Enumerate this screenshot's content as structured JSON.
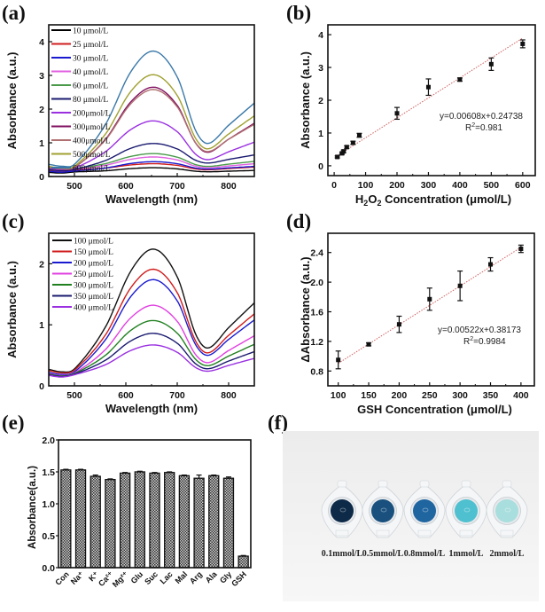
{
  "panels": {
    "a": "(a)",
    "b": "(b)",
    "c": "(c)",
    "d": "(d)",
    "e": "(e)",
    "f": "(f)"
  },
  "chart_data": [
    {
      "id": "a",
      "type": "line",
      "xlabel": "Wavelength (nm)",
      "ylabel": "Absorbance (a.u.)",
      "xlim": [
        450,
        850
      ],
      "ylim": [
        0,
        4.5
      ],
      "xticks": [
        500,
        600,
        700,
        800
      ],
      "yticks": [
        0,
        1,
        2,
        3,
        4
      ],
      "legend_position": "top-left",
      "curve_model": {
        "peak_wavelength": 655,
        "valley_wavelength": 760,
        "x_end": 850
      },
      "series": [
        {
          "name": "10 μmol/L",
          "color": "#000000",
          "start": 0.12,
          "peak": 0.26,
          "valley": 0.14,
          "end": 0.18
        },
        {
          "name": "25 μmol/L",
          "color": "#d01c1c",
          "start": 0.18,
          "peak": 0.38,
          "valley": 0.2,
          "end": 0.28
        },
        {
          "name": "30 μmol/L",
          "color": "#1a1ad0",
          "start": 0.15,
          "peak": 0.44,
          "valley": 0.22,
          "end": 0.3
        },
        {
          "name": "40 μmol/L",
          "color": "#e060e0",
          "start": 0.2,
          "peak": 0.58,
          "valley": 0.26,
          "end": 0.38
        },
        {
          "name": "60 μmol/L",
          "color": "#4a9a4a",
          "start": 0.22,
          "peak": 0.68,
          "valley": 0.3,
          "end": 0.45
        },
        {
          "name": "80 μmol/L",
          "color": "#1a1a70",
          "start": 0.2,
          "peak": 0.98,
          "valley": 0.4,
          "end": 0.64
        },
        {
          "name": "200μmol/L",
          "color": "#9a30e0",
          "start": 0.24,
          "peak": 1.65,
          "valley": 0.5,
          "end": 1.02
        },
        {
          "name": "300μmol/L",
          "color": "#801060",
          "start": 0.26,
          "peak": 2.65,
          "valley": 0.72,
          "end": 1.58
        },
        {
          "name": "400μmol/L",
          "color": "#b07070",
          "start": 0.27,
          "peak": 2.58,
          "valley": 0.74,
          "end": 1.55
        },
        {
          "name": "500μmol/L",
          "color": "#a0a030",
          "start": 0.3,
          "peak": 3.02,
          "valley": 0.82,
          "end": 1.8
        },
        {
          "name": "600μmol/L",
          "color": "#3a78a8",
          "start": 0.36,
          "peak": 3.72,
          "valley": 0.98,
          "end": 2.18
        }
      ]
    },
    {
      "id": "b",
      "type": "scatter",
      "xlabel": "H₂O₂ Concentration (μmol/L)",
      "xlabel_parts": {
        "h": "H",
        "sub1": "2",
        "o": "O",
        "sub2": "2",
        "rest": " Concentration (μmol/L)"
      },
      "ylabel": "Absorbance (a.u.)",
      "xlim": [
        -20,
        640
      ],
      "ylim": [
        -0.3,
        4.3
      ],
      "xticks": [
        0,
        100,
        200,
        300,
        400,
        500,
        600
      ],
      "yticks": [
        0,
        1,
        2,
        3,
        4
      ],
      "points": [
        {
          "x": 10,
          "y": 0.27,
          "err": 0.03
        },
        {
          "x": 25,
          "y": 0.38,
          "err": 0.03
        },
        {
          "x": 30,
          "y": 0.44,
          "err": 0.04
        },
        {
          "x": 40,
          "y": 0.57,
          "err": 0.04
        },
        {
          "x": 60,
          "y": 0.7,
          "err": 0.05
        },
        {
          "x": 80,
          "y": 0.93,
          "err": 0.06
        },
        {
          "x": 200,
          "y": 1.6,
          "err": 0.18
        },
        {
          "x": 300,
          "y": 2.4,
          "err": 0.25
        },
        {
          "x": 400,
          "y": 2.63,
          "err": 0.05
        },
        {
          "x": 500,
          "y": 3.1,
          "err": 0.19
        },
        {
          "x": 600,
          "y": 3.72,
          "err": 0.12
        }
      ],
      "fit": {
        "slope": 0.00608,
        "intercept": 0.24738,
        "x_range": [
          15,
          600
        ],
        "color": "#d06060"
      },
      "annotation": {
        "equation": "y=0.00608x+0.24738",
        "r2_prefix": "R",
        "r2_sup": "2",
        "r2_value": "=0.981"
      }
    },
    {
      "id": "c",
      "type": "line",
      "xlabel": "Wavelength (nm)",
      "ylabel": "Absorbance (a.u.)",
      "xlim": [
        450,
        850
      ],
      "ylim": [
        0,
        2.5
      ],
      "xticks": [
        500,
        600,
        700,
        800
      ],
      "yticks": [
        0,
        1,
        2
      ],
      "legend_position": "top-left",
      "curve_model": {
        "peak_wavelength": 655,
        "valley_wavelength": 760,
        "x_end": 850
      },
      "series": [
        {
          "name": "100 μmol/L",
          "color": "#111111",
          "start": 0.27,
          "peak": 2.24,
          "valley": 0.62,
          "end": 1.36
        },
        {
          "name": "150 μmol/L",
          "color": "#d01c1c",
          "start": 0.25,
          "peak": 1.91,
          "valley": 0.54,
          "end": 1.18
        },
        {
          "name": "200 μmol/L",
          "color": "#1a1ad0",
          "start": 0.22,
          "peak": 1.74,
          "valley": 0.5,
          "end": 1.08
        },
        {
          "name": "250 μmol/L",
          "color": "#e040e0",
          "start": 0.2,
          "peak": 1.32,
          "valley": 0.38,
          "end": 0.82
        },
        {
          "name": "300 μmol/L",
          "color": "#208020",
          "start": 0.19,
          "peak": 1.07,
          "valley": 0.33,
          "end": 0.68
        },
        {
          "name": "350 μmol/L",
          "color": "#1a1a70",
          "start": 0.18,
          "peak": 0.86,
          "valley": 0.28,
          "end": 0.56
        },
        {
          "name": "400 μmol/L",
          "color": "#9a30e0",
          "start": 0.17,
          "peak": 0.67,
          "valley": 0.24,
          "end": 0.45
        }
      ]
    },
    {
      "id": "d",
      "type": "scatter",
      "xlabel": "GSH Concentration (μmol/L)",
      "ylabel": "ΔAbsorbance (a.u.)",
      "xlim": [
        83,
        422
      ],
      "ylim": [
        0.6,
        2.66
      ],
      "xticks": [
        100,
        150,
        200,
        250,
        300,
        350,
        400
      ],
      "yticks": [
        0.8,
        1.2,
        1.6,
        2.0,
        2.4
      ],
      "ytick_labels": [
        "0.8",
        "1.2",
        "1.6",
        "2.0",
        "2.4"
      ],
      "points": [
        {
          "x": 100,
          "y": 0.95,
          "err": 0.12
        },
        {
          "x": 150,
          "y": 1.16,
          "err": 0.02
        },
        {
          "x": 200,
          "y": 1.43,
          "err": 0.11
        },
        {
          "x": 250,
          "y": 1.77,
          "err": 0.15
        },
        {
          "x": 300,
          "y": 1.95,
          "err": 0.2
        },
        {
          "x": 350,
          "y": 2.24,
          "err": 0.09
        },
        {
          "x": 400,
          "y": 2.45,
          "err": 0.05
        }
      ],
      "fit": {
        "slope": 0.00522,
        "intercept": 0.38173,
        "x_range": [
          100,
          400
        ],
        "color": "#d06060"
      },
      "annotation": {
        "equation": "y=0.00522x+0.38173",
        "r2_prefix": "R",
        "r2_sup": "2",
        "r2_value": "=0.9984"
      }
    },
    {
      "id": "e",
      "type": "bar",
      "ylabel": "Absorbance(a.u.)",
      "ylim": [
        0,
        2.0
      ],
      "yticks": [
        0,
        0.5,
        1.0,
        1.5,
        2.0
      ],
      "ytick_labels": [
        "0.0",
        "0.5",
        "1.0",
        "1.5",
        "2.0"
      ],
      "categories": [
        "Con",
        "Na⁺",
        "K⁺",
        "Ca²⁺",
        "Mg²⁺",
        "Glu",
        "Suc",
        "Lac",
        "Mal",
        "Arg",
        "Ala",
        "Gly",
        "GSH"
      ],
      "values": [
        1.53,
        1.53,
        1.43,
        1.38,
        1.48,
        1.5,
        1.48,
        1.49,
        1.44,
        1.4,
        1.44,
        1.4,
        0.18
      ],
      "errors": [
        0.01,
        0.01,
        0.02,
        0.01,
        0.01,
        0.01,
        0.01,
        0.01,
        0.01,
        0.05,
        0.01,
        0.02,
        0.01
      ]
    }
  ],
  "photo": {
    "cuvettes": [
      {
        "label": "0.1mmol/L",
        "color": "#0d2a48"
      },
      {
        "label": "0.5mmol/L",
        "color": "#19507e"
      },
      {
        "label": "0.8mmol/L",
        "color": "#1f65a0"
      },
      {
        "label": "1mmol/L",
        "color": "#4ec0cf"
      },
      {
        "label": "2mmol/L",
        "color": "#a8dedd"
      }
    ]
  }
}
